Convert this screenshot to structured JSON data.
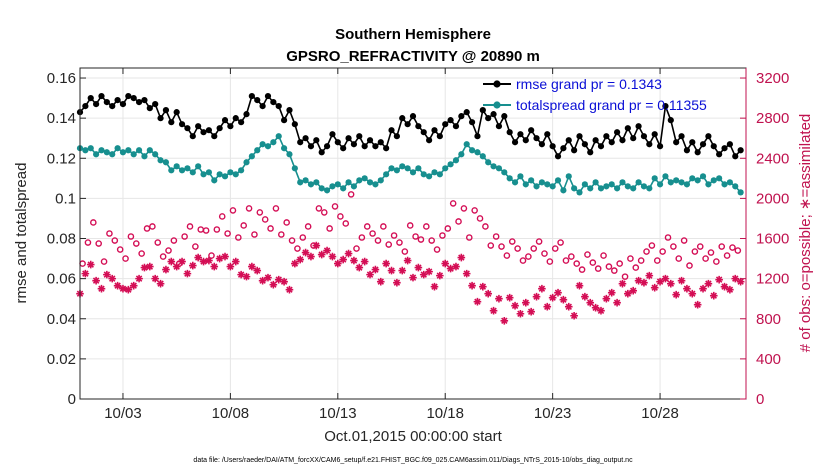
{
  "chart_data": {
    "type": "line",
    "title": "Southern Hemisphere",
    "subtitle": "GPSRO_REFRACTIVITY @ 20890 m",
    "xlabel": "Oct.01,2015 00:00:00 start",
    "ylabel_left": "rmse and totalspread",
    "ylabel_right": "# of obs: o=possible; ∗=assimilated",
    "footnote": "data file: /Users/raeder/DAI/ATM_forcXX/CAM6_setup/f.e21.FHIST_BGC.f09_025.CAM6assim.011/Diags_NTrS_2015-10/obs_diag_output.nc",
    "x_ticks": [
      3,
      8,
      13,
      18,
      23,
      28
    ],
    "x_tick_labels": [
      "10/03",
      "10/08",
      "10/13",
      "10/18",
      "10/23",
      "10/28"
    ],
    "xlim": [
      1.0,
      32.0
    ],
    "ylim_left": [
      0,
      0.165
    ],
    "y_ticks_left": [
      0,
      0.02,
      0.04,
      0.06,
      0.08,
      0.1,
      0.12,
      0.14,
      0.16
    ],
    "y_tick_labels_left": [
      "0",
      "0.02",
      "0.04",
      "0.06",
      "0.08",
      "0.1",
      "0.12",
      "0.14",
      "0.16"
    ],
    "ylim_right": [
      0,
      3300
    ],
    "y_ticks_right": [
      0,
      400,
      800,
      1200,
      1600,
      2000,
      2400,
      2800,
      3200
    ],
    "y_tick_labels_right": [
      "0",
      "400",
      "800",
      "1200",
      "1600",
      "2000",
      "2400",
      "2800",
      "3200"
    ],
    "grid": true,
    "legend_position": "top-right",
    "colors": {
      "rmse": "#000000",
      "spread": "#178f8f",
      "obs": "#d40e55",
      "right_axis": "#c0124f",
      "grid": "#e6e6e6"
    },
    "series": [
      {
        "name": "rmse grand pr = 0.1343",
        "axis": "left",
        "x": [
          1.0,
          1.25,
          1.5,
          1.75,
          2.0,
          2.25,
          2.5,
          2.75,
          3.0,
          3.25,
          3.5,
          3.75,
          4.0,
          4.25,
          4.5,
          4.75,
          5.0,
          5.25,
          5.5,
          5.75,
          6.0,
          6.25,
          6.5,
          6.75,
          7.0,
          7.25,
          7.5,
          7.75,
          8.0,
          8.25,
          8.5,
          8.75,
          9.0,
          9.25,
          9.5,
          9.75,
          10.0,
          10.25,
          10.5,
          10.75,
          11.0,
          11.25,
          11.5,
          11.75,
          12.0,
          12.25,
          12.5,
          12.75,
          13.0,
          13.25,
          13.5,
          13.75,
          14.0,
          14.25,
          14.5,
          14.75,
          15.0,
          15.25,
          15.5,
          15.75,
          16.0,
          16.25,
          16.5,
          16.75,
          17.0,
          17.25,
          17.5,
          17.75,
          18.0,
          18.25,
          18.5,
          18.75,
          19.0,
          19.25,
          19.5,
          19.75,
          20.0,
          20.25,
          20.5,
          20.75,
          21.0,
          21.25,
          21.5,
          21.75,
          22.0,
          22.25,
          22.5,
          22.75,
          23.0,
          23.25,
          23.5,
          23.75,
          24.0,
          24.25,
          24.5,
          24.75,
          25.0,
          25.25,
          25.5,
          25.75,
          26.0,
          26.25,
          26.5,
          26.75,
          27.0,
          27.25,
          27.5,
          27.75,
          28.0,
          28.25,
          28.5,
          28.75,
          29.0,
          29.25,
          29.5,
          29.75,
          30.0,
          30.25,
          30.5,
          30.75,
          31.0,
          31.25,
          31.5,
          31.75
        ],
        "values": [
          0.143,
          0.146,
          0.15,
          0.147,
          0.151,
          0.148,
          0.146,
          0.149,
          0.147,
          0.151,
          0.15,
          0.148,
          0.149,
          0.145,
          0.147,
          0.14,
          0.144,
          0.138,
          0.143,
          0.137,
          0.135,
          0.131,
          0.136,
          0.133,
          0.134,
          0.131,
          0.135,
          0.139,
          0.136,
          0.14,
          0.138,
          0.142,
          0.151,
          0.149,
          0.146,
          0.151,
          0.148,
          0.146,
          0.139,
          0.144,
          0.137,
          0.128,
          0.13,
          0.126,
          0.129,
          0.123,
          0.126,
          0.132,
          0.128,
          0.125,
          0.13,
          0.127,
          0.131,
          0.126,
          0.129,
          0.126,
          0.128,
          0.125,
          0.134,
          0.131,
          0.14,
          0.137,
          0.141,
          0.136,
          0.133,
          0.129,
          0.134,
          0.131,
          0.137,
          0.139,
          0.136,
          0.141,
          0.143,
          0.138,
          0.131,
          0.144,
          0.14,
          0.142,
          0.136,
          0.141,
          0.133,
          0.128,
          0.132,
          0.129,
          0.134,
          0.13,
          0.127,
          0.132,
          0.126,
          0.121,
          0.125,
          0.129,
          0.124,
          0.131,
          0.127,
          0.123,
          0.129,
          0.126,
          0.131,
          0.128,
          0.133,
          0.129,
          0.135,
          0.13,
          0.136,
          0.131,
          0.127,
          0.132,
          0.126,
          0.146,
          0.139,
          0.128,
          0.131,
          0.124,
          0.128,
          0.123,
          0.127,
          0.131,
          0.126,
          0.122,
          0.125,
          0.127,
          0.121,
          0.124
        ],
        "marker": "circle-filled"
      },
      {
        "name": "totalspread grand pr = 0.11355",
        "axis": "left",
        "x": [
          1.0,
          1.25,
          1.5,
          1.75,
          2.0,
          2.25,
          2.5,
          2.75,
          3.0,
          3.25,
          3.5,
          3.75,
          4.0,
          4.25,
          4.5,
          4.75,
          5.0,
          5.25,
          5.5,
          5.75,
          6.0,
          6.25,
          6.5,
          6.75,
          7.0,
          7.25,
          7.5,
          7.75,
          8.0,
          8.25,
          8.5,
          8.75,
          9.0,
          9.25,
          9.5,
          9.75,
          10.0,
          10.25,
          10.5,
          10.75,
          11.0,
          11.25,
          11.5,
          11.75,
          12.0,
          12.25,
          12.5,
          12.75,
          13.0,
          13.25,
          13.5,
          13.75,
          14.0,
          14.25,
          14.5,
          14.75,
          15.0,
          15.25,
          15.5,
          15.75,
          16.0,
          16.25,
          16.5,
          16.75,
          17.0,
          17.25,
          17.5,
          17.75,
          18.0,
          18.25,
          18.5,
          18.75,
          19.0,
          19.25,
          19.5,
          19.75,
          20.0,
          20.25,
          20.5,
          20.75,
          21.0,
          21.25,
          21.5,
          21.75,
          22.0,
          22.25,
          22.5,
          22.75,
          23.0,
          23.25,
          23.5,
          23.75,
          24.0,
          24.25,
          24.5,
          24.75,
          25.0,
          25.25,
          25.5,
          25.75,
          26.0,
          26.25,
          26.5,
          26.75,
          27.0,
          27.25,
          27.5,
          27.75,
          28.0,
          28.25,
          28.5,
          28.75,
          29.0,
          29.25,
          29.5,
          29.75,
          30.0,
          30.25,
          30.5,
          30.75,
          31.0,
          31.25,
          31.5,
          31.75
        ],
        "values": [
          0.125,
          0.124,
          0.125,
          0.122,
          0.124,
          0.123,
          0.122,
          0.125,
          0.123,
          0.124,
          0.122,
          0.124,
          0.121,
          0.124,
          0.122,
          0.119,
          0.118,
          0.114,
          0.116,
          0.114,
          0.115,
          0.113,
          0.116,
          0.112,
          0.113,
          0.109,
          0.112,
          0.111,
          0.113,
          0.112,
          0.114,
          0.118,
          0.121,
          0.124,
          0.127,
          0.126,
          0.128,
          0.131,
          0.125,
          0.122,
          0.115,
          0.108,
          0.109,
          0.107,
          0.108,
          0.105,
          0.104,
          0.106,
          0.107,
          0.105,
          0.108,
          0.106,
          0.109,
          0.11,
          0.108,
          0.107,
          0.109,
          0.112,
          0.115,
          0.114,
          0.116,
          0.115,
          0.113,
          0.115,
          0.112,
          0.111,
          0.113,
          0.112,
          0.115,
          0.117,
          0.119,
          0.122,
          0.127,
          0.124,
          0.123,
          0.121,
          0.118,
          0.116,
          0.115,
          0.113,
          0.11,
          0.108,
          0.111,
          0.107,
          0.109,
          0.106,
          0.108,
          0.107,
          0.106,
          0.109,
          0.104,
          0.111,
          0.105,
          0.103,
          0.107,
          0.105,
          0.108,
          0.105,
          0.106,
          0.107,
          0.105,
          0.108,
          0.106,
          0.105,
          0.108,
          0.106,
          0.105,
          0.11,
          0.107,
          0.111,
          0.108,
          0.109,
          0.108,
          0.107,
          0.11,
          0.109,
          0.111,
          0.107,
          0.109,
          0.11,
          0.107,
          0.108,
          0.106,
          0.103
        ],
        "marker": "circle-filled"
      },
      {
        "name": "possible",
        "axis": "right",
        "marker": "open-circle",
        "x": [
          1.12,
          1.37,
          1.62,
          1.87,
          2.12,
          2.37,
          2.62,
          2.87,
          3.12,
          3.37,
          3.62,
          3.87,
          4.12,
          4.37,
          4.62,
          4.87,
          5.12,
          5.37,
          5.62,
          5.87,
          6.12,
          6.37,
          6.62,
          6.87,
          7.12,
          7.37,
          7.62,
          7.87,
          8.12,
          8.37,
          8.62,
          8.87,
          9.12,
          9.37,
          9.62,
          9.87,
          10.12,
          10.37,
          10.62,
          10.87,
          11.12,
          11.37,
          11.62,
          11.87,
          12.12,
          12.37,
          12.62,
          12.87,
          13.12,
          13.37,
          13.62,
          13.87,
          14.12,
          14.37,
          14.62,
          14.87,
          15.12,
          15.37,
          15.62,
          15.87,
          16.12,
          16.37,
          16.62,
          16.87,
          17.12,
          17.37,
          17.62,
          17.87,
          18.12,
          18.37,
          18.62,
          18.87,
          19.12,
          19.37,
          19.62,
          19.87,
          20.12,
          20.37,
          20.62,
          20.87,
          21.12,
          21.37,
          21.62,
          21.87,
          22.12,
          22.37,
          22.62,
          22.87,
          23.12,
          23.37,
          23.62,
          23.87,
          24.12,
          24.37,
          24.62,
          24.87,
          25.12,
          25.37,
          25.62,
          25.87,
          26.12,
          26.37,
          26.62,
          26.87,
          27.12,
          27.37,
          27.62,
          27.87,
          28.12,
          28.37,
          28.62,
          28.87,
          29.12,
          29.37,
          29.62,
          29.87,
          30.12,
          30.37,
          30.62,
          30.87,
          31.12,
          31.37,
          31.62
        ],
        "values": [
          1350,
          1560,
          1760,
          1550,
          1370,
          1650,
          1580,
          1490,
          1400,
          1620,
          1550,
          1450,
          1700,
          1720,
          1560,
          1420,
          1480,
          1580,
          1350,
          1620,
          1720,
          1520,
          1690,
          1680,
          1430,
          1690,
          1820,
          1650,
          1880,
          1610,
          1730,
          1900,
          1640,
          1860,
          1790,
          1700,
          1900,
          1640,
          1760,
          1580,
          1500,
          1610,
          1720,
          1530,
          1900,
          1860,
          1700,
          1920,
          1820,
          1750,
          2040,
          1500,
          1610,
          1720,
          1650,
          1580,
          1720,
          1540,
          1630,
          1560,
          1470,
          1730,
          1620,
          1590,
          1720,
          1580,
          1490,
          1630,
          1700,
          1950,
          1770,
          1900,
          1610,
          1880,
          1800,
          1720,
          1530,
          1620,
          1520,
          1430,
          1570,
          1500,
          1380,
          1420,
          1500,
          1570,
          1450,
          1370,
          1500,
          1560,
          1380,
          1420,
          1350,
          1290,
          1440,
          1360,
          1300,
          1430,
          1320,
          1280,
          1350,
          1220,
          1400,
          1310,
          1380,
          1470,
          1530,
          1380,
          1470,
          1610,
          1520,
          1400,
          1580,
          1330,
          1470,
          1520,
          1400,
          1460,
          1370,
          1520,
          1430,
          1510,
          1480
        ]
      },
      {
        "name": "assimilated",
        "axis": "right",
        "marker": "asterisk",
        "x": [
          1.0,
          1.25,
          1.5,
          1.75,
          2.0,
          2.25,
          2.5,
          2.75,
          3.0,
          3.25,
          3.5,
          3.75,
          4.0,
          4.25,
          4.5,
          4.75,
          5.0,
          5.25,
          5.5,
          5.75,
          6.0,
          6.25,
          6.5,
          6.75,
          7.0,
          7.25,
          7.5,
          7.75,
          8.0,
          8.25,
          8.5,
          8.75,
          9.0,
          9.25,
          9.5,
          9.75,
          10.0,
          10.25,
          10.5,
          10.75,
          11.0,
          11.25,
          11.5,
          11.75,
          12.0,
          12.25,
          12.5,
          12.75,
          13.0,
          13.25,
          13.5,
          13.75,
          14.0,
          14.25,
          14.5,
          14.75,
          15.0,
          15.25,
          15.5,
          15.75,
          16.0,
          16.25,
          16.5,
          16.75,
          17.0,
          17.25,
          17.5,
          17.75,
          18.0,
          18.25,
          18.5,
          18.75,
          19.0,
          19.25,
          19.5,
          19.75,
          20.0,
          20.25,
          20.5,
          20.75,
          21.0,
          21.25,
          21.5,
          21.75,
          22.0,
          22.25,
          22.5,
          22.75,
          23.0,
          23.25,
          23.5,
          23.75,
          24.0,
          24.25,
          24.5,
          24.75,
          25.0,
          25.25,
          25.5,
          25.75,
          26.0,
          26.25,
          26.5,
          26.75,
          27.0,
          27.25,
          27.5,
          27.75,
          28.0,
          28.25,
          28.5,
          28.75,
          29.0,
          29.25,
          29.5,
          29.75,
          30.0,
          30.25,
          30.5,
          30.75,
          31.0,
          31.25,
          31.5,
          31.75
        ],
        "values": [
          1050,
          1250,
          1340,
          1180,
          1100,
          1240,
          1200,
          1130,
          1100,
          1090,
          1130,
          1200,
          1310,
          1320,
          1200,
          1150,
          1290,
          1370,
          1320,
          1370,
          1250,
          1330,
          1410,
          1370,
          1380,
          1320,
          1400,
          1420,
          1320,
          1370,
          1240,
          1220,
          1320,
          1280,
          1180,
          1210,
          1140,
          1190,
          1170,
          1090,
          1350,
          1390,
          1460,
          1420,
          1530,
          1440,
          1480,
          1420,
          1350,
          1390,
          1450,
          1380,
          1310,
          1370,
          1240,
          1290,
          1170,
          1350,
          1280,
          1160,
          1280,
          1380,
          1210,
          1310,
          1240,
          1270,
          1120,
          1230,
          1350,
          1300,
          1320,
          1410,
          1250,
          1130,
          970,
          1120,
          1050,
          880,
          1000,
          780,
          1010,
          930,
          850,
          960,
          870,
          1020,
          1100,
          920,
          1010,
          1060,
          990,
          920,
          830,
          1130,
          1020,
          960,
          910,
          880,
          1000,
          1060,
          960,
          1150,
          1050,
          1080,
          1180,
          1160,
          1230,
          1110,
          1170,
          1200,
          1150,
          1040,
          1180,
          1100,
          1050,
          940,
          1100,
          1150,
          1030,
          1190,
          1120,
          1090,
          1200,
          1170
        ]
      }
    ]
  }
}
